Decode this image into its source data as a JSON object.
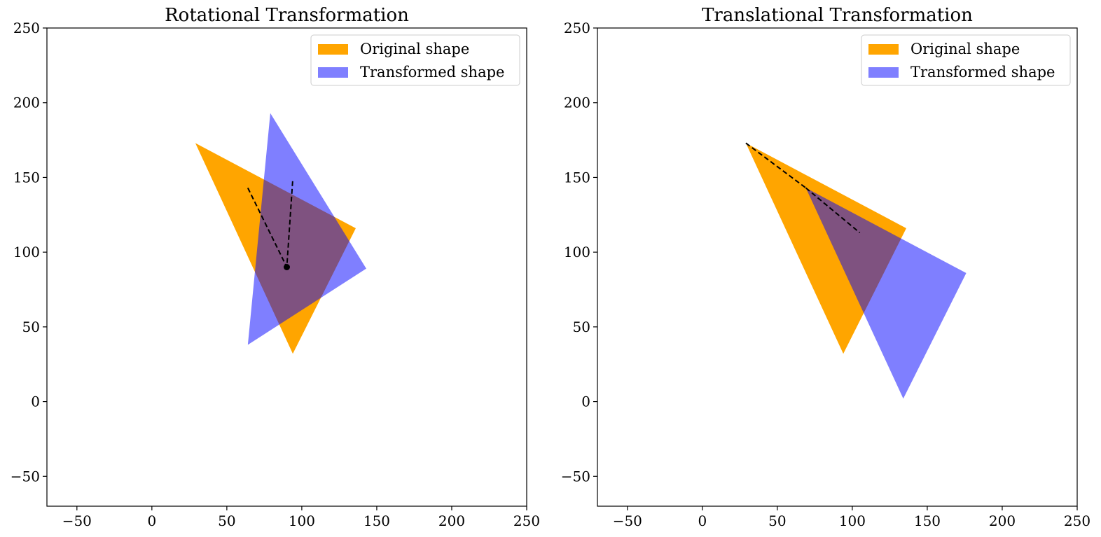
{
  "chart_data": [
    {
      "type": "area",
      "title": "Rotational Transformation",
      "xlabel": "",
      "ylabel": "",
      "xlim": [
        -70,
        250
      ],
      "ylim": [
        -70,
        250
      ],
      "xticks": [
        -50,
        0,
        50,
        100,
        150,
        200,
        250
      ],
      "yticks": [
        -50,
        0,
        50,
        100,
        150,
        200,
        250
      ],
      "xtick_labels": [
        "−50",
        "0",
        "50",
        "100",
        "150",
        "200",
        "250"
      ],
      "ytick_labels": [
        "−50",
        "0",
        "50",
        "100",
        "150",
        "200",
        "250"
      ],
      "grid": false,
      "legend": {
        "position": "top-right",
        "entries": [
          {
            "label": "Original shape",
            "color": "#ffa500",
            "opacity": 1.0
          },
          {
            "label": "Transformed shape",
            "color": "#0000ff",
            "opacity": 0.5
          }
        ]
      },
      "series": [
        {
          "name": "Original shape",
          "kind": "polygon",
          "color": "#ffa500",
          "opacity": 1.0,
          "points": [
            [
              29,
              173
            ],
            [
              136,
              116
            ],
            [
              94,
              32
            ]
          ]
        },
        {
          "name": "Transformed shape",
          "kind": "polygon",
          "color": "#0000ff",
          "opacity": 0.5,
          "points": [
            [
              79,
              193
            ],
            [
              143,
              89
            ],
            [
              64,
              38
            ]
          ]
        }
      ],
      "annotations": [
        {
          "kind": "dashed-line",
          "color": "#000000",
          "points": [
            [
              64,
              143
            ],
            [
              90,
              90
            ],
            [
              94,
              149
            ]
          ]
        },
        {
          "kind": "point",
          "color": "#000000",
          "at": [
            90,
            90
          ]
        }
      ]
    },
    {
      "type": "area",
      "title": "Translational Transformation",
      "xlabel": "",
      "ylabel": "",
      "xlim": [
        -70,
        250
      ],
      "ylim": [
        -70,
        250
      ],
      "xticks": [
        -50,
        0,
        50,
        100,
        150,
        200,
        250
      ],
      "yticks": [
        -50,
        0,
        50,
        100,
        150,
        200,
        250
      ],
      "xtick_labels": [
        "−50",
        "0",
        "50",
        "100",
        "150",
        "200",
        "250"
      ],
      "ytick_labels": [
        "−50",
        "0",
        "50",
        "100",
        "150",
        "200",
        "250"
      ],
      "grid": false,
      "legend": {
        "position": "top-right",
        "entries": [
          {
            "label": "Original shape",
            "color": "#ffa500",
            "opacity": 1.0
          },
          {
            "label": "Transformed shape",
            "color": "#0000ff",
            "opacity": 0.5
          }
        ]
      },
      "series": [
        {
          "name": "Original shape",
          "kind": "polygon",
          "color": "#ffa500",
          "opacity": 1.0,
          "points": [
            [
              29,
              173
            ],
            [
              136,
              116
            ],
            [
              94,
              32
            ]
          ]
        },
        {
          "name": "Transformed shape",
          "kind": "polygon",
          "color": "#0000ff",
          "opacity": 0.5,
          "points": [
            [
              69,
              143
            ],
            [
              176,
              86
            ],
            [
              134,
              2
            ]
          ]
        }
      ],
      "annotations": [
        {
          "kind": "dashed-line",
          "color": "#000000",
          "points": [
            [
              29,
              173
            ],
            [
              69,
              143
            ]
          ]
        },
        {
          "kind": "dashed-line",
          "color": "#000000",
          "points": [
            [
              69,
              143
            ],
            [
              105,
              113
            ]
          ]
        }
      ]
    }
  ]
}
